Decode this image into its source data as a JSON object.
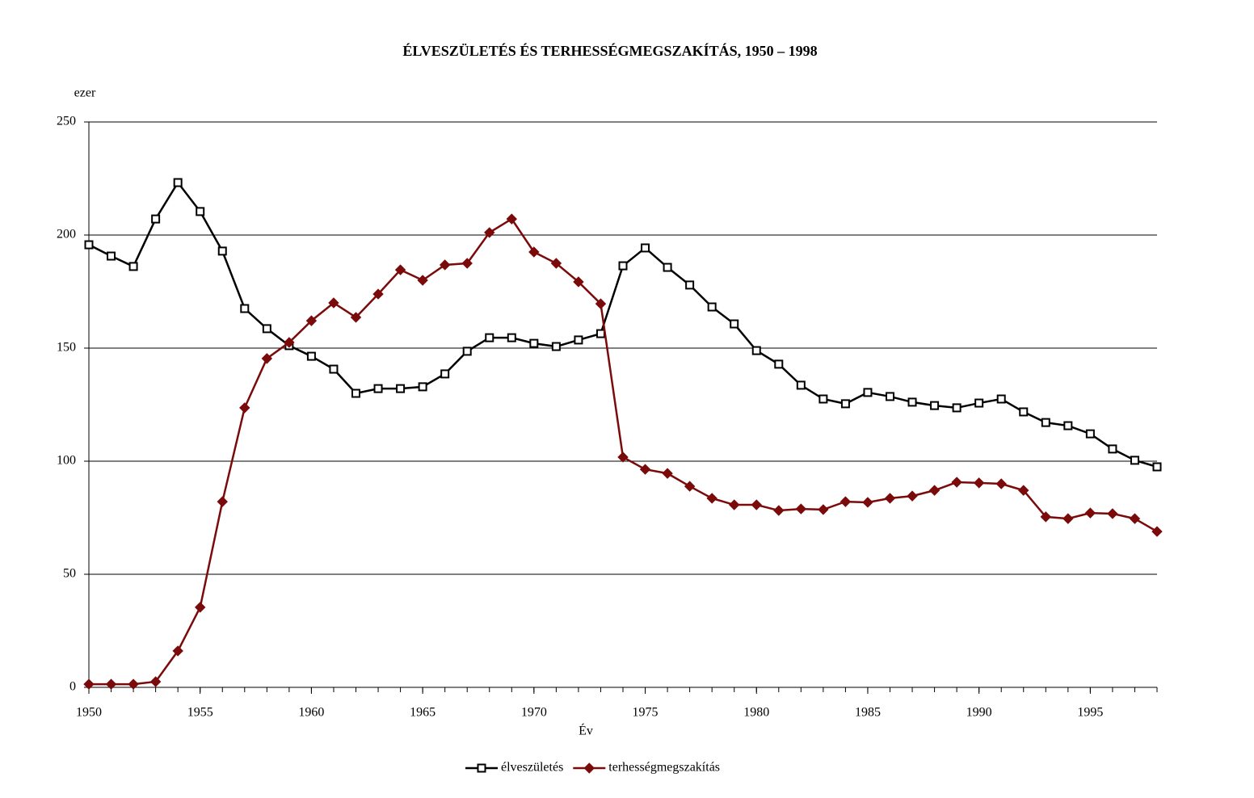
{
  "chart_data": {
    "type": "line",
    "title": "ÉLVESZÜLETÉS ÉS TERHESSÉGMEGSZAKÍTÁS, 1950 – 1998",
    "y_label": "ezer",
    "x_label": "Év",
    "x": [
      1950,
      1951,
      1952,
      1953,
      1954,
      1955,
      1956,
      1957,
      1958,
      1959,
      1960,
      1961,
      1962,
      1963,
      1964,
      1965,
      1966,
      1967,
      1968,
      1969,
      1970,
      1971,
      1972,
      1973,
      1974,
      1975,
      1976,
      1977,
      1978,
      1979,
      1980,
      1981,
      1982,
      1983,
      1984,
      1985,
      1986,
      1987,
      1988,
      1989,
      1990,
      1991,
      1992,
      1993,
      1994,
      1995,
      1996,
      1997,
      1998
    ],
    "series": [
      {
        "name": "élveszületés",
        "color": "#000000",
        "marker": "square",
        "values": [
          195.7,
          190.7,
          186.1,
          207.1,
          223.2,
          210.4,
          192.9,
          167.5,
          158.6,
          151.1,
          146.4,
          140.7,
          130.0,
          132.1,
          132.1,
          132.9,
          138.6,
          148.6,
          154.6,
          154.6,
          152.1,
          150.7,
          153.6,
          156.4,
          186.4,
          194.3,
          185.7,
          177.9,
          168.2,
          160.7,
          148.9,
          142.9,
          133.6,
          127.5,
          125.4,
          130.4,
          128.6,
          126.1,
          124.6,
          123.6,
          125.7,
          127.5,
          121.8,
          117.1,
          115.7,
          112.1,
          105.4,
          100.4,
          97.5
        ]
      },
      {
        "name": "terhességmegszakítás",
        "color": "#7b0a0a",
        "marker": "diamond",
        "values": [
          1.4,
          1.4,
          1.4,
          2.5,
          16.1,
          35.4,
          82.1,
          123.6,
          145.4,
          152.5,
          162.1,
          170.0,
          163.6,
          173.9,
          184.6,
          180.0,
          186.8,
          187.5,
          201.1,
          207.1,
          192.5,
          187.5,
          179.3,
          169.6,
          101.8,
          96.4,
          94.6,
          88.9,
          83.6,
          80.7,
          80.7,
          78.2,
          78.9,
          78.6,
          82.1,
          81.8,
          83.6,
          84.6,
          87.1,
          90.7,
          90.4,
          90.0,
          87.1,
          75.4,
          74.6,
          77.1,
          76.8,
          74.6,
          68.9
        ]
      }
    ],
    "xlim": [
      1950,
      1998
    ],
    "xticks": [
      1950,
      1955,
      1960,
      1965,
      1970,
      1975,
      1980,
      1985,
      1990,
      1995
    ],
    "ylim": [
      0,
      250
    ],
    "yticks": [
      0,
      50,
      100,
      150,
      200,
      250
    ],
    "grid": true,
    "legend": "bottom"
  }
}
